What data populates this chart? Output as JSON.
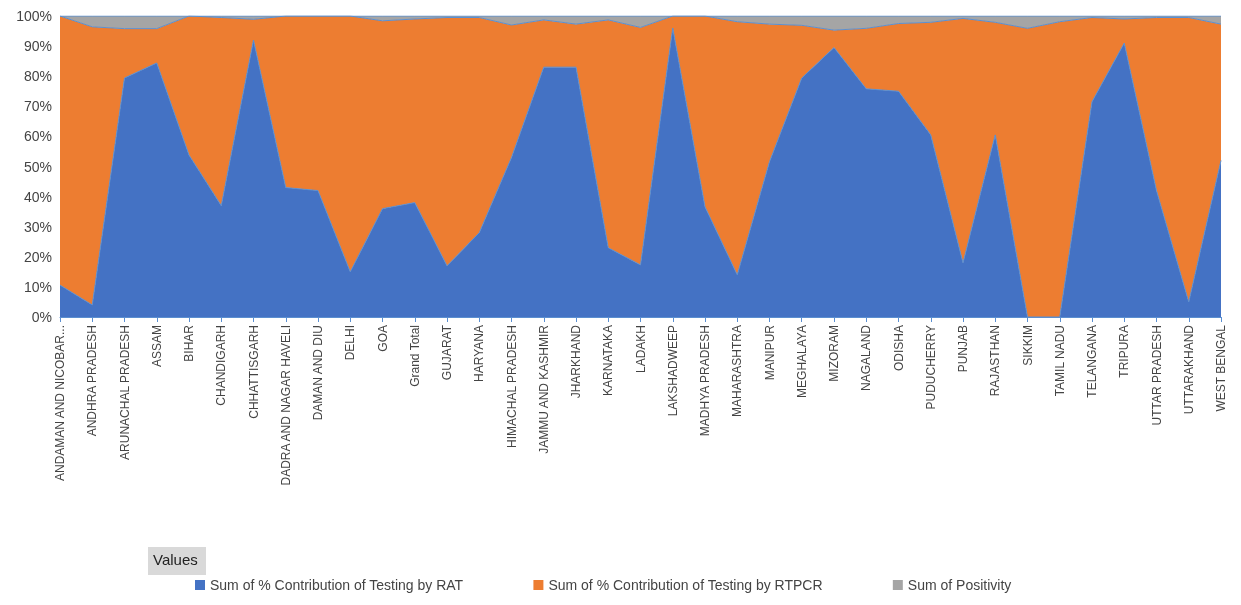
{
  "chart_data": {
    "type": "area",
    "stacked": true,
    "legend_title": "Values",
    "legend": "bottom",
    "categories": [
      "ANDAMAN AND NICOBAR...",
      "ANDHRA PRADESH",
      "ARUNACHAL PRADESH",
      "ASSAM",
      "BIHAR",
      "CHANDIGARH",
      "CHHATTISGARH",
      "DADRA AND NAGAR HAVELI",
      "DAMAN AND DIU",
      "DELHI",
      "GOA",
      "Grand Total",
      "GUJARAT",
      "HARYANA",
      "HIMACHAL PRADESH",
      "JAMMU AND KASHMIR",
      "JHARKHAND",
      "KARNATAKA",
      "LADAKH",
      "LAKSHADWEEP",
      "MADHYA PRADESH",
      "MAHARASHTRA",
      "MANIPUR",
      "MEGHALAYA",
      "MIZORAM",
      "NAGALAND",
      "ODISHA",
      "PUDUCHERRY",
      "PUNJAB",
      "RAJASTHAN",
      "SIKKIM",
      "TAMIL NADU",
      "TELANGANA",
      "TRIPURA",
      "UTTAR PRADESH",
      "UTTARAKHAND",
      "WEST BENGAL"
    ],
    "ylim": [
      0,
      100
    ],
    "yticks": [
      {
        "value": 0,
        "label": "0%"
      },
      {
        "value": 10,
        "label": "10%"
      },
      {
        "value": 20,
        "label": "20%"
      },
      {
        "value": 30,
        "label": "30%"
      },
      {
        "value": 40,
        "label": "40%"
      },
      {
        "value": 50,
        "label": "50%"
      },
      {
        "value": 60,
        "label": "60%"
      },
      {
        "value": 70,
        "label": "70%"
      },
      {
        "value": 80,
        "label": "80%"
      },
      {
        "value": 90,
        "label": "90%"
      },
      {
        "value": 100,
        "label": "100%"
      }
    ],
    "series": [
      {
        "name": "Sum of % Contribution of Testing by RAT",
        "color": "#4472c4",
        "values": [
          10.6,
          4,
          79.4,
          84.4,
          53.8,
          37,
          92,
          43,
          42,
          15,
          36,
          38,
          17,
          28,
          53,
          83,
          83,
          23,
          17.3,
          96,
          36.6,
          14,
          51.6,
          79.4,
          89.5,
          75.8,
          75,
          60.5,
          18,
          60.5,
          0,
          0,
          71.5,
          91,
          42,
          5,
          52
        ]
      },
      {
        "name": "Sum of % Contribution of Testing by RTPCR",
        "color": "#ed7d31",
        "values": [
          89.4,
          92.4,
          16.4,
          11.4,
          46.2,
          62.5,
          6.9,
          57,
          58,
          85,
          62.4,
          61,
          82.5,
          71.5,
          44,
          15.7,
          14.3,
          75.7,
          78.9,
          4,
          63.4,
          84.1,
          45.7,
          17.5,
          5.8,
          20.1,
          22.5,
          37.4,
          81.2,
          37.4,
          95.9,
          98.1,
          28,
          8,
          57.5,
          94.5,
          45.3
        ]
      },
      {
        "name": "Sum of Positivity",
        "color": "#a5a5a5",
        "values": [
          0,
          3.6,
          4.2,
          4.2,
          0,
          0.5,
          1.1,
          0,
          0,
          0,
          1.6,
          1,
          0.5,
          0.5,
          3,
          1.3,
          2.7,
          1.3,
          3.8,
          0,
          0,
          1.9,
          2.7,
          3.1,
          4.7,
          4.1,
          2.5,
          2.1,
          0.8,
          2.1,
          4.1,
          1.9,
          0.5,
          1,
          0.5,
          0.5,
          2.7
        ]
      }
    ]
  }
}
